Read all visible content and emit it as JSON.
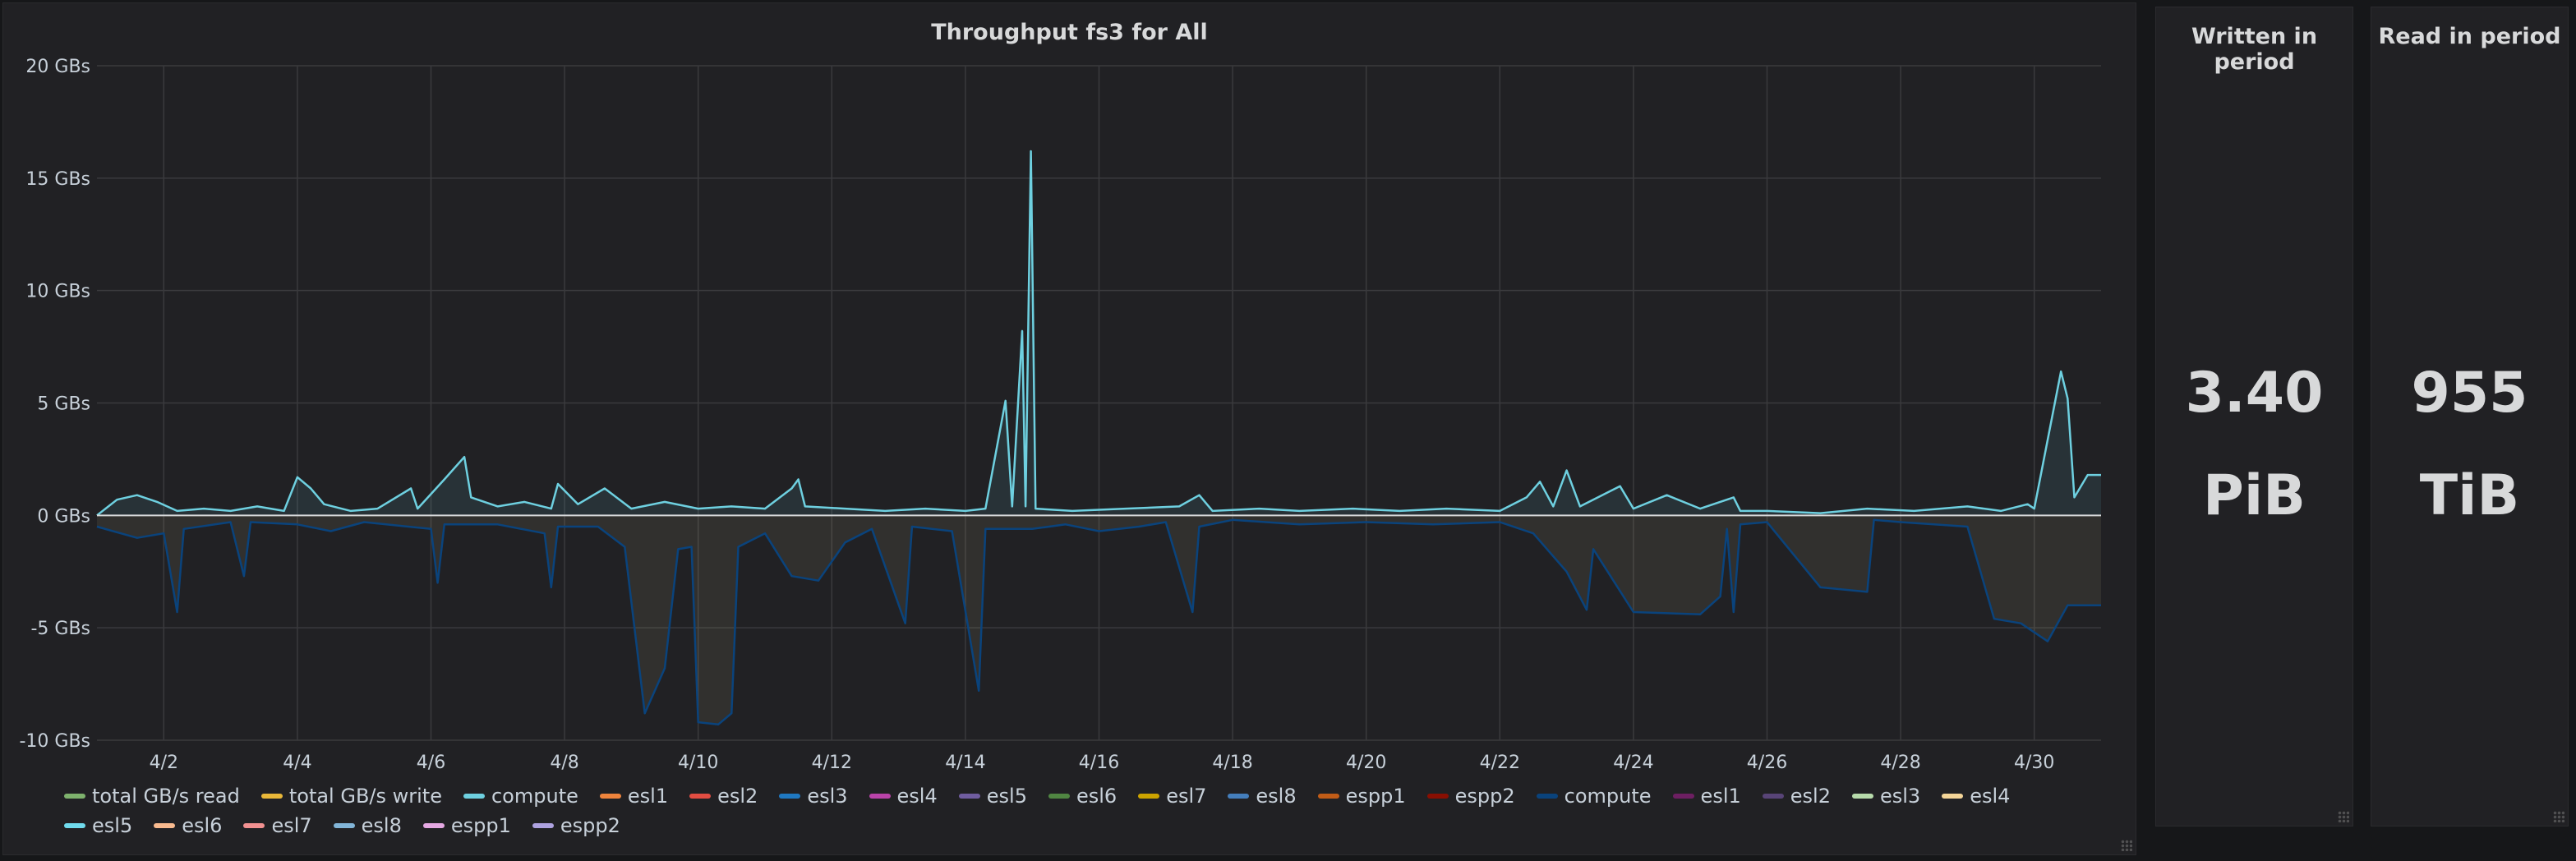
{
  "graph_panel": {
    "title": "Throughput fs3 for All",
    "legend": [
      {
        "label": "total GB/s read",
        "color": "#7eb26d"
      },
      {
        "label": "total GB/s write",
        "color": "#eab839"
      },
      {
        "label": "compute",
        "color": "#6ed0e0"
      },
      {
        "label": "esl1",
        "color": "#ef843c"
      },
      {
        "label": "esl2",
        "color": "#e24d42"
      },
      {
        "label": "esl3",
        "color": "#1f78c1"
      },
      {
        "label": "esl4",
        "color": "#ba43a9"
      },
      {
        "label": "esl5",
        "color": "#705da0"
      },
      {
        "label": "esl6",
        "color": "#508642"
      },
      {
        "label": "esl7",
        "color": "#cca300"
      },
      {
        "label": "esl8",
        "color": "#447ebc"
      },
      {
        "label": "espp1",
        "color": "#c15c17"
      },
      {
        "label": "espp2",
        "color": "#890f02"
      },
      {
        "label": "compute",
        "color": "#0a437c"
      },
      {
        "label": "esl1",
        "color": "#6d1f62"
      },
      {
        "label": "esl2",
        "color": "#584477"
      },
      {
        "label": "esl3",
        "color": "#b7dbab"
      },
      {
        "label": "esl4",
        "color": "#f4d598"
      },
      {
        "label": "esl5",
        "color": "#70dbed"
      },
      {
        "label": "esl6",
        "color": "#f9ba8f"
      },
      {
        "label": "esl7",
        "color": "#f29191"
      },
      {
        "label": "esl8",
        "color": "#82b5d8"
      },
      {
        "label": "espp1",
        "color": "#e5a8e2"
      },
      {
        "label": "espp2",
        "color": "#aea2e0"
      }
    ]
  },
  "chart_data": {
    "type": "area",
    "ylim": [
      -10,
      20
    ],
    "y_ticks": [
      "20 GBs",
      "15 GBs",
      "10 GBs",
      "5 GBs",
      "0 GBs",
      "-5 GBs",
      "-10 GBs"
    ],
    "y_tick_values": [
      20,
      15,
      10,
      5,
      0,
      -5,
      -10
    ],
    "x_ticks": [
      "4/2",
      "4/4",
      "4/6",
      "4/8",
      "4/10",
      "4/12",
      "4/14",
      "4/16",
      "4/18",
      "4/20",
      "4/22",
      "4/24",
      "4/26",
      "4/28",
      "4/30"
    ],
    "xlim_days": [
      1.0,
      31.0
    ],
    "grid": true,
    "series": [
      {
        "name": "compute",
        "color": "#6ed0e0",
        "points": [
          [
            1.0,
            0.0
          ],
          [
            1.3,
            0.7
          ],
          [
            1.6,
            0.9
          ],
          [
            1.9,
            0.6
          ],
          [
            2.2,
            0.2
          ],
          [
            2.6,
            0.3
          ],
          [
            3.0,
            0.2
          ],
          [
            3.4,
            0.4
          ],
          [
            3.8,
            0.2
          ],
          [
            4.0,
            1.7
          ],
          [
            4.2,
            1.2
          ],
          [
            4.4,
            0.5
          ],
          [
            4.8,
            0.2
          ],
          [
            5.2,
            0.3
          ],
          [
            5.7,
            1.2
          ],
          [
            5.8,
            0.3
          ],
          [
            6.2,
            1.6
          ],
          [
            6.5,
            2.6
          ],
          [
            6.6,
            0.8
          ],
          [
            7.0,
            0.4
          ],
          [
            7.4,
            0.6
          ],
          [
            7.8,
            0.3
          ],
          [
            7.9,
            1.4
          ],
          [
            8.2,
            0.5
          ],
          [
            8.6,
            1.2
          ],
          [
            9.0,
            0.3
          ],
          [
            9.5,
            0.6
          ],
          [
            10.0,
            0.3
          ],
          [
            10.5,
            0.4
          ],
          [
            11.0,
            0.3
          ],
          [
            11.4,
            1.2
          ],
          [
            11.5,
            1.6
          ],
          [
            11.6,
            0.4
          ],
          [
            12.2,
            0.3
          ],
          [
            12.8,
            0.2
          ],
          [
            13.4,
            0.3
          ],
          [
            14.0,
            0.2
          ],
          [
            14.3,
            0.3
          ],
          [
            14.6,
            5.1
          ],
          [
            14.7,
            0.4
          ],
          [
            14.85,
            8.2
          ],
          [
            14.9,
            0.4
          ],
          [
            14.98,
            16.2
          ],
          [
            15.05,
            0.3
          ],
          [
            15.6,
            0.2
          ],
          [
            16.4,
            0.3
          ],
          [
            17.2,
            0.4
          ],
          [
            17.5,
            0.9
          ],
          [
            17.7,
            0.2
          ],
          [
            18.4,
            0.3
          ],
          [
            19.0,
            0.2
          ],
          [
            19.8,
            0.3
          ],
          [
            20.5,
            0.2
          ],
          [
            21.2,
            0.3
          ],
          [
            22.0,
            0.2
          ],
          [
            22.4,
            0.8
          ],
          [
            22.6,
            1.5
          ],
          [
            22.8,
            0.4
          ],
          [
            23.0,
            2.0
          ],
          [
            23.2,
            0.4
          ],
          [
            23.8,
            1.3
          ],
          [
            24.0,
            0.3
          ],
          [
            24.5,
            0.9
          ],
          [
            25.0,
            0.3
          ],
          [
            25.5,
            0.8
          ],
          [
            25.6,
            0.2
          ],
          [
            26.0,
            0.2
          ],
          [
            26.8,
            0.1
          ],
          [
            27.5,
            0.3
          ],
          [
            28.2,
            0.2
          ],
          [
            29.0,
            0.4
          ],
          [
            29.5,
            0.2
          ],
          [
            29.9,
            0.5
          ],
          [
            30.0,
            0.3
          ],
          [
            30.4,
            6.4
          ],
          [
            30.5,
            5.2
          ],
          [
            30.6,
            0.8
          ],
          [
            30.8,
            1.8
          ],
          [
            31.0,
            1.8
          ]
        ]
      },
      {
        "name": "compute",
        "color": "#0a437c",
        "points": [
          [
            1.0,
            -0.5
          ],
          [
            1.6,
            -1.0
          ],
          [
            2.0,
            -0.8
          ],
          [
            2.2,
            -4.3
          ],
          [
            2.3,
            -0.6
          ],
          [
            3.0,
            -0.3
          ],
          [
            3.2,
            -2.7
          ],
          [
            3.3,
            -0.3
          ],
          [
            4.0,
            -0.4
          ],
          [
            4.5,
            -0.7
          ],
          [
            5.0,
            -0.3
          ],
          [
            6.0,
            -0.6
          ],
          [
            6.1,
            -3.0
          ],
          [
            6.2,
            -0.4
          ],
          [
            7.0,
            -0.4
          ],
          [
            7.7,
            -0.8
          ],
          [
            7.8,
            -3.2
          ],
          [
            7.9,
            -0.5
          ],
          [
            8.5,
            -0.5
          ],
          [
            8.9,
            -1.4
          ],
          [
            9.2,
            -8.8
          ],
          [
            9.5,
            -6.8
          ],
          [
            9.7,
            -1.5
          ],
          [
            9.9,
            -1.4
          ],
          [
            10.0,
            -9.2
          ],
          [
            10.3,
            -9.3
          ],
          [
            10.5,
            -8.8
          ],
          [
            10.6,
            -1.4
          ],
          [
            11.0,
            -0.8
          ],
          [
            11.4,
            -2.7
          ],
          [
            11.8,
            -2.9
          ],
          [
            12.2,
            -1.2
          ],
          [
            12.6,
            -0.6
          ],
          [
            13.1,
            -4.8
          ],
          [
            13.2,
            -0.5
          ],
          [
            13.8,
            -0.7
          ],
          [
            14.2,
            -7.8
          ],
          [
            14.3,
            -0.6
          ],
          [
            15.0,
            -0.6
          ],
          [
            15.5,
            -0.4
          ],
          [
            16.0,
            -0.7
          ],
          [
            16.6,
            -0.5
          ],
          [
            17.0,
            -0.3
          ],
          [
            17.4,
            -4.3
          ],
          [
            17.5,
            -0.5
          ],
          [
            18.0,
            -0.2
          ],
          [
            19.0,
            -0.4
          ],
          [
            20.0,
            -0.3
          ],
          [
            21.0,
            -0.4
          ],
          [
            22.0,
            -0.3
          ],
          [
            22.5,
            -0.8
          ],
          [
            23.0,
            -2.5
          ],
          [
            23.3,
            -4.2
          ],
          [
            23.4,
            -1.5
          ],
          [
            24.0,
            -4.3
          ],
          [
            25.0,
            -4.4
          ],
          [
            25.3,
            -3.6
          ],
          [
            25.4,
            -0.6
          ],
          [
            25.5,
            -4.3
          ],
          [
            25.6,
            -0.4
          ],
          [
            26.0,
            -0.3
          ],
          [
            26.8,
            -3.2
          ],
          [
            27.5,
            -3.4
          ],
          [
            27.6,
            -0.2
          ],
          [
            28.0,
            -0.3
          ],
          [
            29.0,
            -0.5
          ],
          [
            29.4,
            -4.6
          ],
          [
            29.8,
            -4.8
          ],
          [
            30.2,
            -5.6
          ],
          [
            30.5,
            -4.0
          ],
          [
            30.8,
            -4.0
          ],
          [
            31.0,
            -4.0
          ]
        ]
      }
    ]
  },
  "written_panel": {
    "title": "Written in period",
    "value": "3.40",
    "unit": "PiB"
  },
  "read_panel": {
    "title": "Read in period",
    "value": "955",
    "unit": "TiB"
  }
}
